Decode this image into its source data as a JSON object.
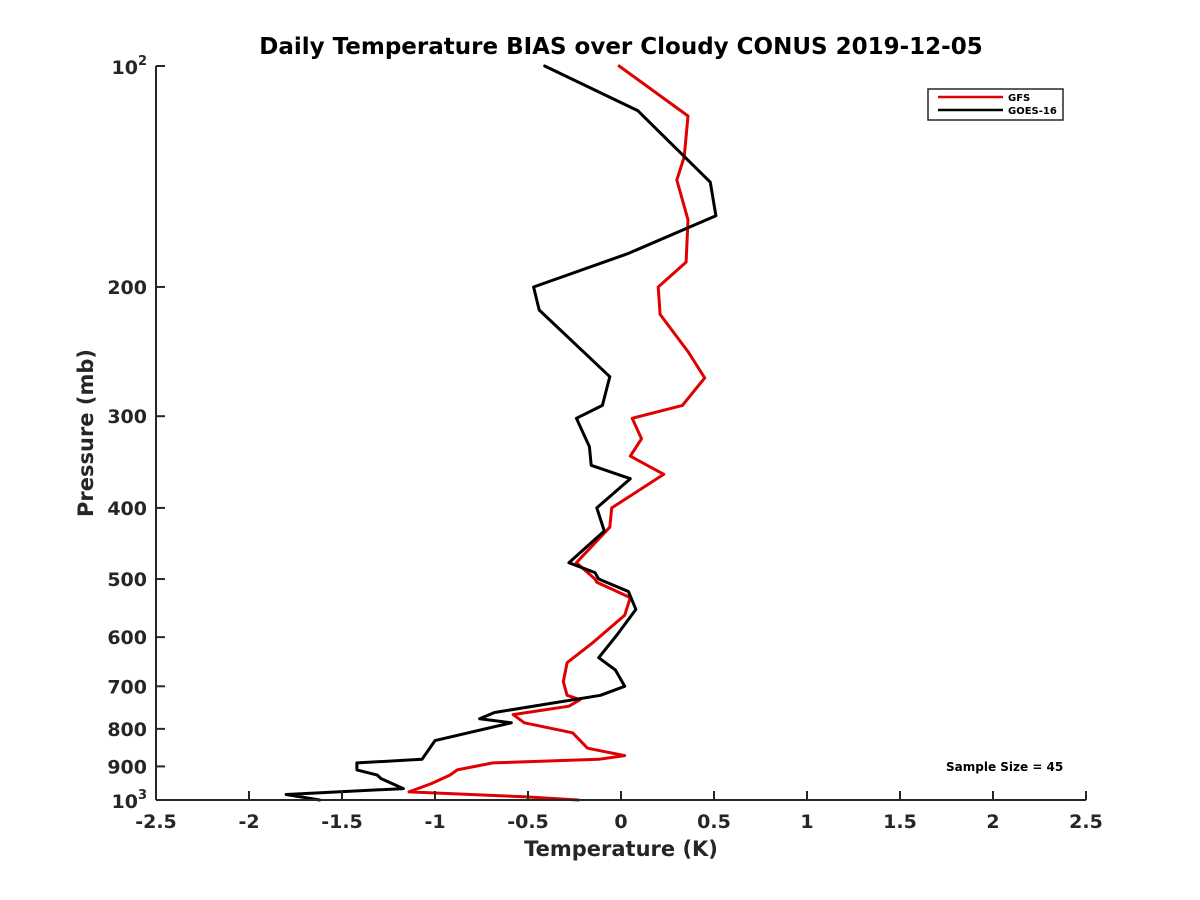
{
  "chart_data": {
    "type": "line",
    "title": "Daily Temperature BIAS over Cloudy CONUS 2019-12-05",
    "xlabel": "Temperature (K)",
    "ylabel": "Pressure (mb)",
    "xlim": [
      -2.5,
      2.5
    ],
    "ylim": [
      100,
      1000
    ],
    "yscale": "log",
    "y_reversed": true,
    "x_ticks": [
      -2.5,
      -2,
      -1.5,
      -1,
      -0.5,
      0,
      0.5,
      1,
      1.5,
      2,
      2.5
    ],
    "x_tick_labels": [
      "-2.5",
      "-2",
      "-1.5",
      "-1",
      "-0.5",
      "0",
      "0.5",
      "1",
      "1.5",
      "2",
      "2.5"
    ],
    "y_ticks": [
      200,
      300,
      400,
      500,
      600,
      700,
      800,
      900
    ],
    "y_tick_labels": [
      "200",
      "300",
      "400",
      "500",
      "600",
      "700",
      "800",
      "900"
    ],
    "y_end_labels": {
      "top_base": "10",
      "top_exp": "2",
      "bottom_base": "10",
      "bottom_exp": "3"
    },
    "grid": false,
    "legend_position": "top-right",
    "annotation": "Sample Size = 45",
    "series": [
      {
        "name": "GFS",
        "color": "#e00000",
        "x": [
          -0.01,
          0.36,
          0.34,
          0.3,
          0.36,
          0.35,
          0.2,
          0.21,
          0.36,
          0.45,
          0.33,
          0.06,
          0.11,
          0.05,
          0.23,
          -0.05,
          -0.06,
          -0.24,
          -0.14,
          -0.13,
          0.05,
          0.02,
          -0.15,
          -0.29,
          -0.31,
          -0.29,
          -0.22,
          -0.28,
          -0.58,
          -0.52,
          -0.26,
          -0.18,
          0.02,
          -0.12,
          -0.69,
          -0.88,
          -0.92,
          -1.02,
          -1.14,
          -0.52,
          -0.23
        ],
        "y": [
          100,
          117,
          133,
          143,
          162,
          185,
          200,
          218,
          245,
          266,
          290,
          302,
          322,
          340,
          360,
          400,
          425,
          475,
          500,
          505,
          530,
          560,
          610,
          650,
          690,
          720,
          730,
          745,
          765,
          785,
          810,
          850,
          870,
          880,
          890,
          910,
          925,
          950,
          975,
          990,
          1000
        ]
      },
      {
        "name": "GOES-16",
        "color": "#000000",
        "x": [
          -0.41,
          0.09,
          0.48,
          0.51,
          0.04,
          -0.47,
          -0.44,
          -0.06,
          -0.1,
          -0.24,
          -0.17,
          -0.16,
          0.05,
          -0.13,
          -0.09,
          -0.28,
          -0.14,
          -0.12,
          0.04,
          0.08,
          -0.02,
          -0.12,
          -0.03,
          0.02,
          -0.11,
          -0.68,
          -0.76,
          -0.59,
          -1.0,
          -1.07,
          -1.42,
          -1.42,
          -1.31,
          -1.29,
          -1.17,
          -1.8,
          -1.62
        ],
        "y": [
          100,
          115,
          144,
          160,
          180,
          200,
          215,
          265,
          290,
          302,
          330,
          350,
          365,
          400,
          430,
          475,
          490,
          500,
          520,
          550,
          595,
          640,
          665,
          700,
          720,
          760,
          775,
          785,
          830,
          880,
          890,
          910,
          925,
          935,
          965,
          983,
          1000
        ]
      }
    ]
  }
}
